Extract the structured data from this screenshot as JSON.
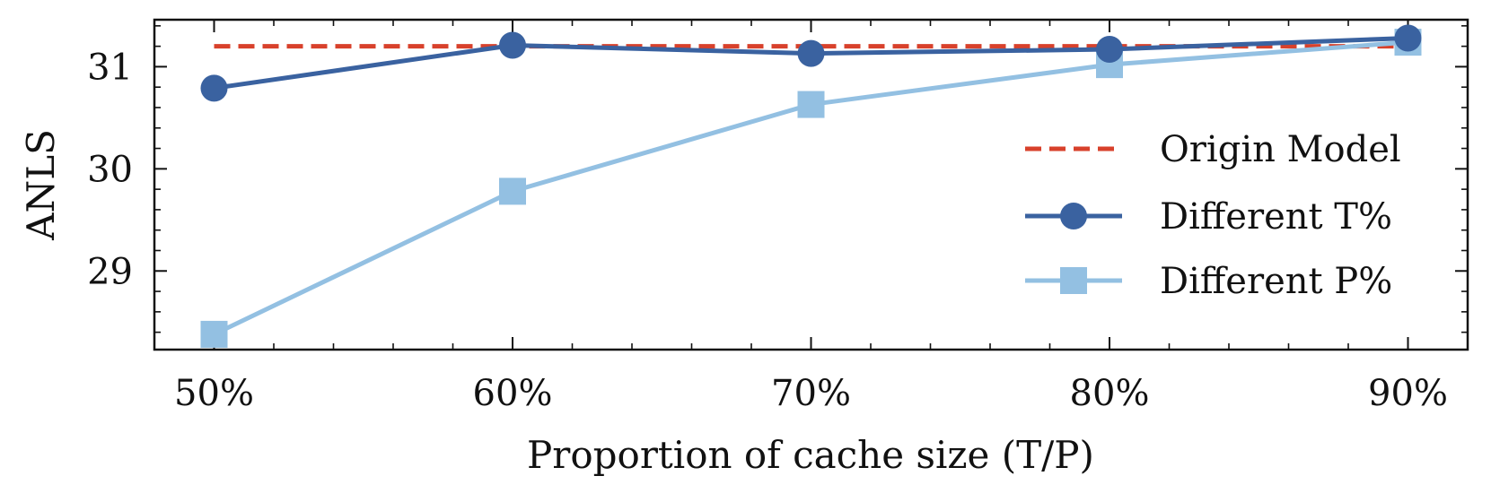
{
  "chart_data": {
    "type": "line",
    "title": "",
    "xlabel": "Proportion of cache size (T/P)",
    "ylabel": "ANLS",
    "categories": [
      "50%",
      "60%",
      "70%",
      "80%",
      "90%"
    ],
    "x_values": [
      50,
      60,
      70,
      80,
      90
    ],
    "xlim": [
      48,
      92
    ],
    "ylim": [
      28.23,
      31.46
    ],
    "yticks": [
      29,
      30,
      31
    ],
    "ytick_labels": [
      "29",
      "30",
      "31"
    ],
    "grid": false,
    "legend_position": "right",
    "reference_line": {
      "name": "Origin Model",
      "value": 31.2,
      "color": "#d8412b",
      "style": "dashed"
    },
    "series": [
      {
        "name": "Different T%",
        "values": [
          30.79,
          31.21,
          31.13,
          31.17,
          31.28
        ],
        "color": "#3a62a0",
        "marker": "circle"
      },
      {
        "name": "Different P%",
        "values": [
          28.38,
          29.78,
          30.63,
          31.02,
          31.24
        ],
        "color": "#93c0e2",
        "marker": "square"
      }
    ]
  }
}
